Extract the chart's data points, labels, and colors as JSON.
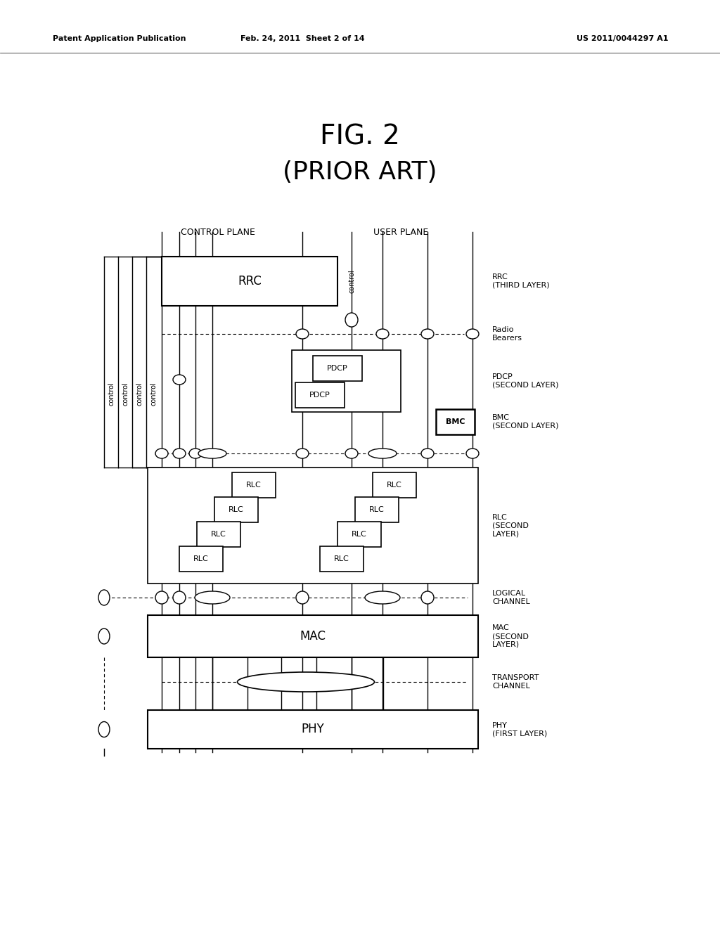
{
  "title_line1": "FIG. 2",
  "title_line2": "(PRIOR ART)",
  "header_left": "Patent Application Publication",
  "header_mid": "Feb. 24, 2011  Sheet 2 of 14",
  "header_right": "US 2011/0044297 A1",
  "bg_color": "#ffffff",
  "control_plane_label": "CONTROL PLANE",
  "user_plane_label": "USER PLANE",
  "rrc_label": "RRC",
  "rrc_layer": "RRC\n(THIRD LAYER)",
  "radio_bearers": "Radio\nBearers",
  "pdcp_label": "PDCP",
  "pdcp_layer": "PDCP\n(SECOND LAYER)",
  "bmc_label": "BMC",
  "bmc_layer": "BMC\n(SECOND LAYER)",
  "rlc_label": "RLC",
  "rlc_layer": "RLC\n(SECOND\nLAYER)",
  "logical_channel": "LOGICAL\nCHANNEL",
  "mac_label": "MAC",
  "mac_layer": "MAC\n(SECOND\nLAYER)",
  "transport_channel": "TRANSPORT\nCHANNEL",
  "phy_label": "PHY",
  "phy_layer": "PHY\n(FIRST LAYER)"
}
